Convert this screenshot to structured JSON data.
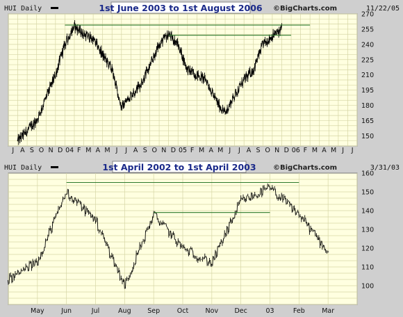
{
  "colors": {
    "plot_bg": "#ffffe0",
    "grid": "#d6d6a6",
    "price": "#000000",
    "resistance": "#2d7a2d",
    "title_box": "#ffffff",
    "title_text": "#1b2a8a"
  },
  "chart_data": [
    {
      "type": "line",
      "symbol": "HUI Daily",
      "title": "1st June 2003 to 1st August 2006",
      "date_stamp": "11/22/05",
      "brand": "©BigCharts.com",
      "ylim": [
        140,
        270
      ],
      "yticks": [
        150,
        165,
        180,
        195,
        210,
        225,
        240,
        255,
        270
      ],
      "xticks": [
        "J",
        "A",
        "S",
        "O",
        "N",
        "D",
        "04",
        "F",
        "M",
        "A",
        "M",
        "J",
        "J",
        "A",
        "S",
        "O",
        "N",
        "D",
        "05",
        "F",
        "M",
        "A",
        "M",
        "J",
        "J",
        "A",
        "S",
        "O",
        "N",
        "D",
        "06",
        "F",
        "M",
        "A",
        "M",
        "J",
        "J"
      ],
      "x": [
        "2003-07",
        "2003-09",
        "2003-11",
        "2003-12",
        "2004-01",
        "2004-02",
        "2004-03",
        "2004-04",
        "2004-05",
        "2004-06",
        "2004-07",
        "2004-08",
        "2004-09",
        "2004-10",
        "2004-11",
        "2004-12",
        "2005-01",
        "2005-02",
        "2005-03",
        "2005-04",
        "2005-05",
        "2005-06",
        "2005-07",
        "2005-08",
        "2005-09",
        "2005-10",
        "2005-11"
      ],
      "series": [
        {
          "values": [
            145,
            165,
            210,
            240,
            258,
            250,
            245,
            230,
            215,
            178,
            190,
            200,
            218,
            240,
            250,
            240,
            215,
            210,
            205,
            185,
            172,
            190,
            205,
            215,
            240,
            248,
            255
          ]
        }
      ],
      "resistance_lines": [
        {
          "from": "2003-12",
          "to": "2006-02",
          "value": 259
        },
        {
          "from": "2004-11",
          "to": "2005-12",
          "value": 249
        }
      ],
      "grid": true,
      "legend": "none"
    },
    {
      "type": "line",
      "symbol": "HUI Daily",
      "title": "1st April 2002 to 1st April 2003",
      "date_stamp": "3/31/03",
      "brand": "©BigCharts.com",
      "ylim": [
        90,
        160
      ],
      "yticks": [
        100,
        110,
        120,
        130,
        140,
        150,
        160
      ],
      "xticks": [
        "May",
        "Jun",
        "Jul",
        "Aug",
        "Sep",
        "Oct",
        "Nov",
        "Dec",
        "03",
        "Feb",
        "Mar"
      ],
      "x": [
        "2002-04",
        "2002-05",
        "2002-06",
        "2002-07",
        "2002-08",
        "2002-09",
        "2002-10",
        "2002-11",
        "2002-12",
        "2003-01",
        "2003-02",
        "2003-03"
      ],
      "series": [
        {
          "values": [
            103,
            113,
            150,
            135,
            100,
            138,
            120,
            112,
            145,
            152,
            138,
            118
          ]
        }
      ],
      "resistance_lines": [
        {
          "from": "2002-06",
          "to": "2003-02",
          "value": 155
        },
        {
          "from": "2002-09",
          "to": "2003-01",
          "value": 139
        }
      ],
      "grid": true,
      "legend": "none"
    }
  ]
}
